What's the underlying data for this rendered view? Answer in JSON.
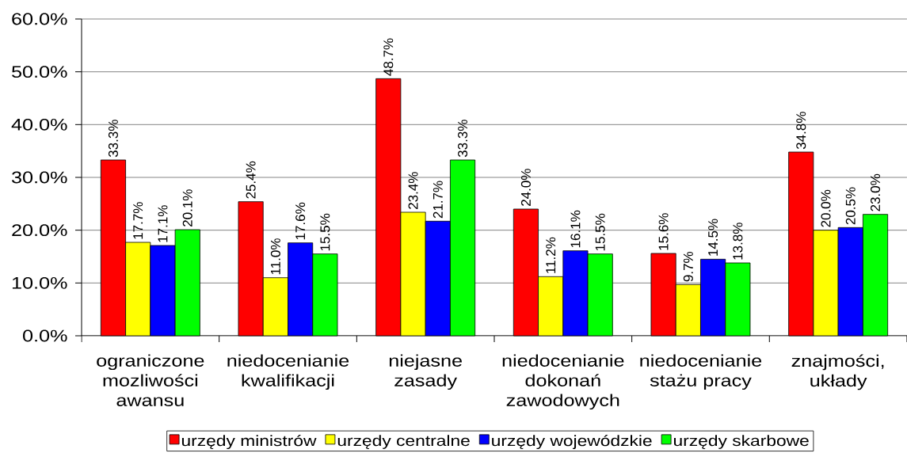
{
  "chart_data": {
    "type": "bar",
    "categories": [
      "ograniczone mozliwości awansu",
      "niedocenianie kwalifikacji",
      "niejasne zasady",
      "niedocenianie dokonań zawodowych",
      "niedocenianie stażu pracy",
      "znajmości, układy"
    ],
    "series": [
      {
        "name": "urzędy ministrów",
        "color": "#ff0000",
        "values": [
          33.3,
          25.4,
          48.7,
          24.0,
          15.6,
          34.8
        ],
        "value_labels": [
          "33.3%",
          "25.4%",
          "48.7%",
          "24.0%",
          "15.6%",
          "34.8%"
        ]
      },
      {
        "name": "urzędy centralne",
        "color": "#ffff00",
        "values": [
          17.7,
          11.0,
          23.4,
          11.2,
          9.7,
          20.0
        ],
        "value_labels": [
          "17.7%",
          "11.0%",
          "23.4%",
          "11.2%",
          "9.7%",
          "20.0%"
        ]
      },
      {
        "name": "urzędy wojewódzkie",
        "color": "#0000ff",
        "values": [
          17.1,
          17.6,
          21.7,
          16.1,
          14.5,
          20.5
        ],
        "value_labels": [
          "17.1%",
          "17.6%",
          "21.7%",
          "16.1%",
          "14.5%",
          "20.5%"
        ]
      },
      {
        "name": "urzędy skarbowe",
        "color": "#00ff00",
        "values": [
          20.1,
          15.5,
          33.3,
          15.5,
          13.8,
          23.0
        ],
        "value_labels": [
          "20.1%",
          "15.5%",
          "33.3%",
          "15.5%",
          "13.8%",
          "23.0%"
        ]
      }
    ],
    "ylim": [
      0,
      60
    ],
    "yticks": [
      {
        "value": 0,
        "label": "0.0%"
      },
      {
        "value": 10,
        "label": "10.0%"
      },
      {
        "value": 20,
        "label": "20.0%"
      },
      {
        "value": 30,
        "label": "30.0%"
      },
      {
        "value": 40,
        "label": "40.0%"
      },
      {
        "value": 50,
        "label": "50.0%"
      },
      {
        "value": 60,
        "label": "60.0%"
      }
    ],
    "grid": "y",
    "legend": "bottom"
  }
}
